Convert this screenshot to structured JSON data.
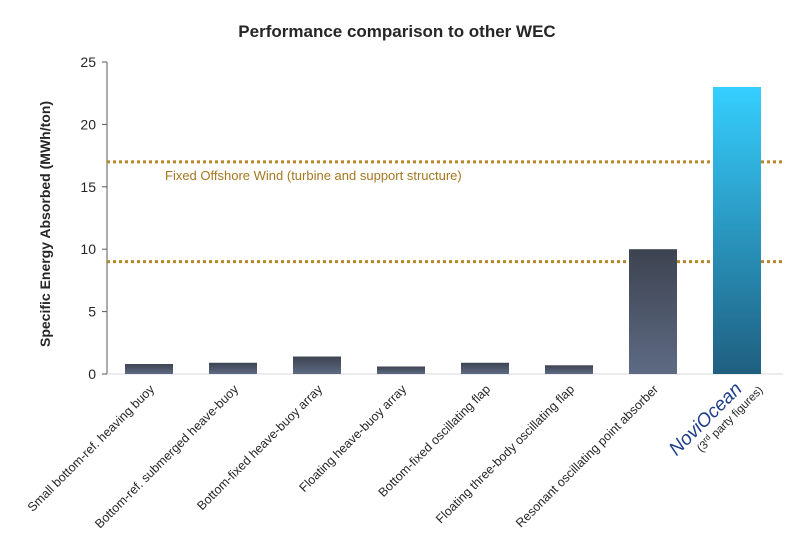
{
  "chart_data": {
    "type": "bar",
    "title": "Performance comparison to other WEC",
    "ylabel": "Specific Energy Absorbed (MWh/ton)",
    "xlabel": "",
    "ylim": [
      0,
      25
    ],
    "yticks": [
      "0",
      "5",
      "10",
      "15",
      "20",
      "25"
    ],
    "grid": false,
    "categories": [
      "Small bottom-ref. heaving buoy",
      "Bottom-ref. submerged heave-buoy",
      "Bottom-fixed heave-buoy array",
      "Floating heave-buoy array",
      "Bottom-fixed oscillating flap",
      "Floating three-body oscillating flap",
      "Resonant oscillating point absorber",
      "NoviOcean"
    ],
    "values": [
      0.8,
      0.9,
      1.4,
      0.6,
      0.9,
      0.7,
      10.0,
      23.0
    ],
    "highlight": {
      "category": "NoviOcean",
      "brand_text": "NoviOcean",
      "note_prefix": "(3",
      "note_sup": "rd",
      "note_suffix": " party figures)"
    },
    "reference_lines": [
      {
        "value": 17,
        "label": "Fixed Offshore Wind (turbine and support structure)"
      },
      {
        "value": 9,
        "label": ""
      }
    ],
    "colors": {
      "bar_top": "#3d4350",
      "bar_bottom": "#5e6b84",
      "highlight_top": "#35cfff",
      "highlight_bottom": "#1f5f80",
      "reference_line": "#b8862a",
      "reference_text": "#a57720",
      "axis": "#595959"
    }
  }
}
